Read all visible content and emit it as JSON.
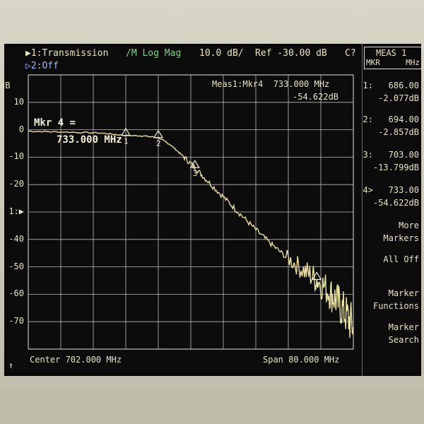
{
  "header": {
    "trace1_label": "▶1:Transmission",
    "trace1_format": "/M Log Mag",
    "trace1_scale": "10.0 dB/",
    "trace1_ref": "Ref -30.00 dB",
    "trace1_flag": "C?",
    "trace2_label": "▷2:Off"
  },
  "yaxis": {
    "unit": "dB",
    "ticks": [
      "10",
      "0",
      "-10",
      "-20",
      "1:▶",
      "-40",
      "-50",
      "-60",
      "-70"
    ]
  },
  "marker_readout": {
    "line1": "Mkr 4 =",
    "line2": "733.000 MHz"
  },
  "meas_readout": {
    "line1": "Meas1:Mkr4  733.000 MHz",
    "line2": "-54.622dB"
  },
  "marker_labels": [
    "1",
    "2",
    "3",
    "4"
  ],
  "sidebar": {
    "head_line1": "MEAS 1",
    "head_left": "MKR",
    "head_right": "MHz",
    "markers": [
      {
        "freq": "1:   686.00",
        "value": "-2.077dB"
      },
      {
        "freq": "2:   694.00",
        "value": "-2.857dB"
      },
      {
        "freq": "3:   703.00",
        "value": "-13.799dB"
      },
      {
        "freq": "4>   733.00",
        "value": "-54.622dB"
      }
    ],
    "buttons": [
      {
        "l1": "More",
        "l2": "Markers"
      },
      {
        "l1": "All Off",
        "l2": ""
      },
      {
        "l1": "Marker",
        "l2": "Functions"
      },
      {
        "l1": "Marker",
        "l2": "Search"
      }
    ]
  },
  "footer": {
    "arrow": "↑",
    "center": "Center 702.000 MHz",
    "span": "Span 80.000 MHz"
  },
  "chart_data": {
    "type": "line",
    "xlim": [
      662,
      742
    ],
    "ylim": [
      -80,
      20
    ],
    "grid": true,
    "series": [
      {
        "x": [
          662,
          670,
          680,
          686,
          690,
          694,
          697,
          700,
          703,
          706,
          710,
          714,
          718,
          722,
          726,
          730,
          733,
          736,
          738,
          740,
          742
        ],
        "values": [
          -0.5,
          -0.8,
          -1.2,
          -2.1,
          -2.2,
          -2.9,
          -5.5,
          -9.5,
          -13.8,
          -18.5,
          -24.5,
          -30.5,
          -36.5,
          -42.0,
          -47.0,
          -51.5,
          -54.6,
          -59.0,
          -62.5,
          -67.0,
          -72.0
        ]
      }
    ],
    "markers": [
      {
        "label": "1",
        "x": 686,
        "y": -2.077
      },
      {
        "label": "2",
        "x": 694,
        "y": -2.857
      },
      {
        "label": "3",
        "x": 703,
        "y": -13.799
      },
      {
        "label": "4",
        "x": 733,
        "y": -54.622
      }
    ]
  }
}
